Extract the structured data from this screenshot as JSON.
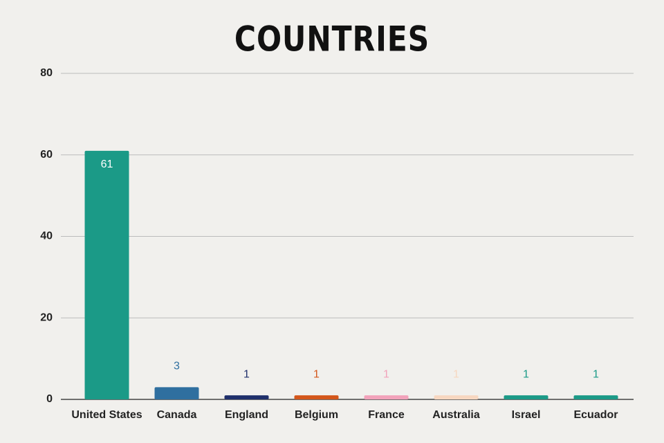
{
  "chart_data": {
    "type": "bar",
    "title": "COUNTRIES",
    "categories": [
      "United States",
      "Canada",
      "England",
      "Belgium",
      "France",
      "Australia",
      "Israel",
      "Ecuador"
    ],
    "values": [
      61,
      3,
      1,
      1,
      1,
      1,
      1,
      1
    ],
    "colors": [
      "#1b9a87",
      "#2f6f9f",
      "#1f2f6b",
      "#d4561a",
      "#f2a2ba",
      "#f7d7c0",
      "#1b9a87",
      "#1b9a87"
    ],
    "ylim": [
      0,
      80
    ],
    "yticks": [
      0,
      20,
      40,
      60,
      80
    ],
    "grid": true
  }
}
